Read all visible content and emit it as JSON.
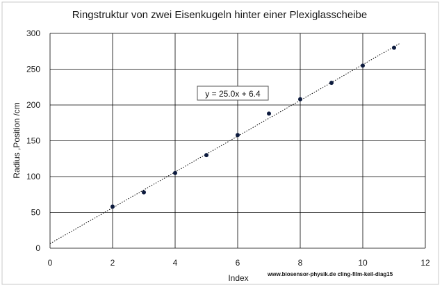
{
  "chart_data": {
    "type": "scatter",
    "title": "Ringstruktur von zwei Eisenkugeln hinter einer Plexiglasscheibe",
    "xlabel": "Index",
    "ylabel": "Radius ,Position /cm",
    "xlim": [
      0,
      12
    ],
    "ylim": [
      0,
      300
    ],
    "xticks": [
      "0",
      "2",
      "4",
      "6",
      "8",
      "10",
      "12"
    ],
    "yticks": [
      "0",
      "50",
      "100",
      "150",
      "200",
      "250",
      "300"
    ],
    "grid": true,
    "legend": "none",
    "series": [
      {
        "x": [
          2,
          3,
          4,
          5,
          6,
          7,
          8,
          9,
          10,
          11
        ],
        "y": [
          58,
          78,
          105,
          130,
          158,
          188,
          208,
          231,
          255,
          280
        ]
      }
    ],
    "trendline": {
      "style": "dotted",
      "slope": 25.0,
      "intercept": 6.4,
      "label": "y = 25.0x + 6.4"
    },
    "annotations": [
      "www.biosensor-physik.de  cling-film-keil-diag15"
    ],
    "colors": {
      "marker": "#0d1b3e",
      "grid": "#000000",
      "frame": "#c8c8c8"
    }
  }
}
